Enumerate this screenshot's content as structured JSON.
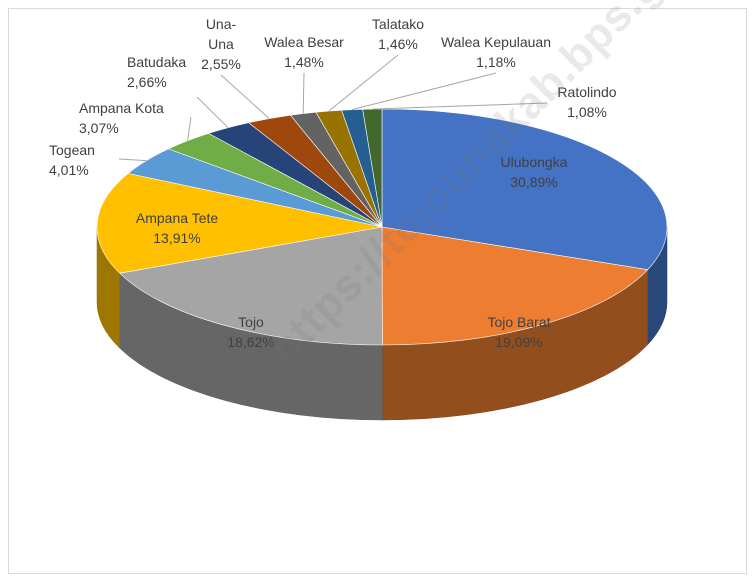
{
  "chart_data": {
    "type": "pie",
    "title": "",
    "categories": [
      "Ulubongka",
      "Tojo Barat",
      "Tojo",
      "Ampana Tete",
      "Togean",
      "Ampana Kota",
      "Batudaka",
      "Una-Una",
      "Walea Besar",
      "Talatako",
      "Walea Kepulauan",
      "Ratolindo"
    ],
    "series": [
      {
        "values": [
          30.89,
          19.09,
          18.62,
          13.91,
          4.01,
          3.07,
          2.66,
          2.55,
          1.48,
          1.46,
          1.18,
          1.08
        ]
      }
    ],
    "value_labels": [
      "30,89%",
      "19,09%",
      "18,62%",
      "13,91%",
      "4,01%",
      "3,07%",
      "2,66%",
      "2,55%",
      "1,48%",
      "1,46%",
      "1,18%",
      "1,08%"
    ],
    "label_lines": [
      [
        "Ulubongka"
      ],
      [
        "Tojo Barat"
      ],
      [
        "Tojo"
      ],
      [
        "Ampana Tete"
      ],
      [
        "Togean"
      ],
      [
        "Ampana Kota"
      ],
      [
        "Batudaka"
      ],
      [
        "Una-",
        "Una"
      ],
      [
        "Walea Besar"
      ],
      [
        "Talatako"
      ],
      [
        "Walea Kepulauan"
      ],
      [
        "Ratolindo"
      ]
    ],
    "colors": [
      "#4472C4",
      "#ED7D31",
      "#A5A5A5",
      "#FFC000",
      "#5B9BD5",
      "#70AD47",
      "#264478",
      "#9E480E",
      "#636363",
      "#997300",
      "#255E91",
      "#43682B"
    ],
    "start_angle_deg": 90,
    "direction": "clockwise",
    "style": "3d-pie",
    "legend": "none",
    "data_labels": "category-and-percent"
  },
  "watermark": "https://tojounakab.bps.go.id"
}
